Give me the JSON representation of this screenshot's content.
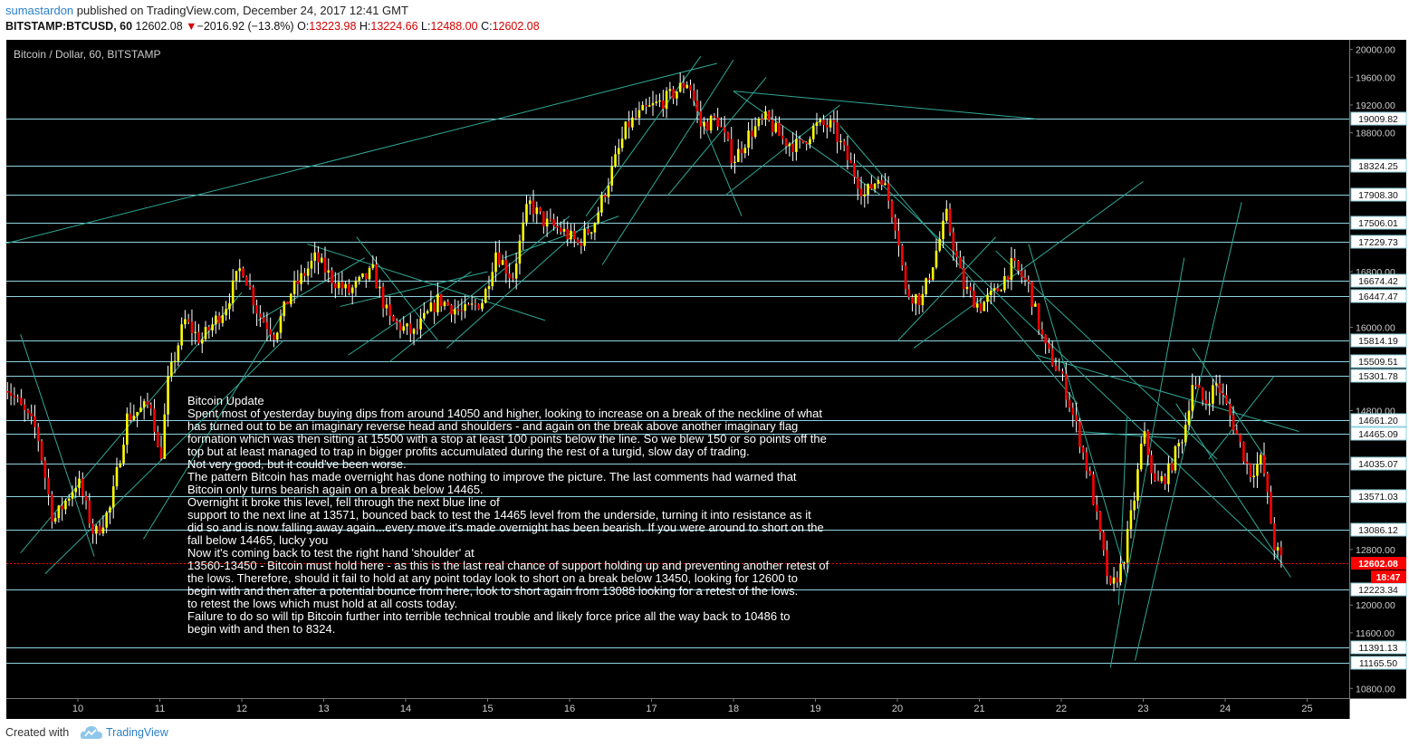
{
  "header": {
    "user": "sumastardon",
    "published_text": "published on TradingView.com, December 24, 2017 12:41 GMT",
    "symbol": "BITSTAMP:BTCUSD, 60",
    "last": "12602.08",
    "change_arrow": "▼",
    "change": "−2016.92 (−13.8%)",
    "o_label": "O:",
    "o_value": "13223.98",
    "h_label": "H:",
    "h_value": "13224.66",
    "l_label": "L:",
    "l_value": "12488.00",
    "c_label": "C:",
    "c_value": "12602.08"
  },
  "footer": {
    "created_with": "Created with",
    "brand": "TradingView"
  },
  "colors": {
    "background": "#000000",
    "up": "#ffff00",
    "down": "#ff0000",
    "wick": "#ffffff",
    "level_line": "#8fd3e0",
    "trend_line": "#2fa896",
    "last_price": "#ff0000",
    "axis_text": "#cccccc"
  },
  "chart_data": {
    "type": "candlestick",
    "title": "Bitcoin / Dollar, 60, BITSTAMP",
    "ylim": [
      10600,
      20100
    ],
    "xlim": [
      9.1,
      25.5
    ],
    "y_ticks": [
      "10800.00",
      "11600.00",
      "12000.00",
      "12800.00",
      "14800.00",
      "16000.00",
      "16800.00",
      "18800.00",
      "19200.00",
      "19600.00",
      "20000.00"
    ],
    "x_ticks": [
      "10",
      "11",
      "12",
      "13",
      "14",
      "15",
      "16",
      "17",
      "18",
      "19",
      "20",
      "21",
      "22",
      "23",
      "24",
      "25"
    ],
    "levels": [
      "19009.82",
      "18324.25",
      "17908.30",
      "17506.01",
      "17229.73",
      "16674.42",
      "16447.47",
      "15814.19",
      "15509.51",
      "15301.78",
      "14661.20",
      "14465.09",
      "14035.07",
      "13571.03",
      "13086.12",
      "12223.34",
      "11391.13",
      "11165.50"
    ],
    "last_price": "12602.08",
    "countdown": "18:47",
    "path": [
      [
        9.1,
        15200
      ],
      [
        9.5,
        14500
      ],
      [
        9.7,
        13200
      ],
      [
        10.0,
        13800
      ],
      [
        10.2,
        13000
      ],
      [
        10.4,
        13400
      ],
      [
        10.6,
        14700
      ],
      [
        10.9,
        14900
      ],
      [
        11.0,
        14000
      ],
      [
        11.1,
        15200
      ],
      [
        11.3,
        16100
      ],
      [
        11.5,
        15800
      ],
      [
        11.8,
        16300
      ],
      [
        12.0,
        16900
      ],
      [
        12.2,
        16200
      ],
      [
        12.4,
        15900
      ],
      [
        12.6,
        16500
      ],
      [
        12.9,
        17000
      ],
      [
        13.1,
        16700
      ],
      [
        13.3,
        16500
      ],
      [
        13.6,
        16800
      ],
      [
        13.8,
        16100
      ],
      [
        14.1,
        15900
      ],
      [
        14.4,
        16400
      ],
      [
        14.7,
        16200
      ],
      [
        14.95,
        16400
      ],
      [
        15.1,
        17100
      ],
      [
        15.3,
        16700
      ],
      [
        15.5,
        17800
      ],
      [
        15.7,
        17500
      ],
      [
        15.9,
        17400
      ],
      [
        16.1,
        17200
      ],
      [
        16.3,
        17500
      ],
      [
        16.5,
        18200
      ],
      [
        16.7,
        18900
      ],
      [
        16.9,
        19100
      ],
      [
        17.2,
        19300
      ],
      [
        17.45,
        19550
      ],
      [
        17.6,
        18900
      ],
      [
        17.8,
        19000
      ],
      [
        18.0,
        18400
      ],
      [
        18.2,
        18800
      ],
      [
        18.4,
        19000
      ],
      [
        18.6,
        18700
      ],
      [
        18.8,
        18600
      ],
      [
        19.0,
        18900
      ],
      [
        19.2,
        18900
      ],
      [
        19.4,
        18400
      ],
      [
        19.6,
        17900
      ],
      [
        19.8,
        18200
      ],
      [
        20.0,
        17400
      ],
      [
        20.1,
        16500
      ],
      [
        20.3,
        16400
      ],
      [
        20.5,
        17200
      ],
      [
        20.6,
        17600
      ],
      [
        20.8,
        16600
      ],
      [
        21.0,
        16300
      ],
      [
        21.2,
        16500
      ],
      [
        21.4,
        16900
      ],
      [
        21.6,
        16600
      ],
      [
        21.8,
        15700
      ],
      [
        22.0,
        15300
      ],
      [
        22.2,
        14500
      ],
      [
        22.35,
        13800
      ],
      [
        22.5,
        12800
      ],
      [
        22.6,
        12200
      ],
      [
        22.75,
        12600
      ],
      [
        22.9,
        13600
      ],
      [
        23.0,
        14500
      ],
      [
        23.15,
        13700
      ],
      [
        23.3,
        13900
      ],
      [
        23.5,
        14500
      ],
      [
        23.6,
        15200
      ],
      [
        23.75,
        14900
      ],
      [
        23.9,
        15200
      ],
      [
        24.0,
        14900
      ],
      [
        24.1,
        14600
      ],
      [
        24.3,
        13900
      ],
      [
        24.45,
        14100
      ],
      [
        24.6,
        12850
      ],
      [
        24.7,
        12602
      ]
    ],
    "trend_lines": [
      [
        [
          9.1,
          17200
        ],
        [
          17.8,
          19800
        ]
      ],
      [
        [
          9.3,
          12750
        ],
        [
          12.0,
          16500
        ]
      ],
      [
        [
          9.6,
          12450
        ],
        [
          12.5,
          15800
        ]
      ],
      [
        [
          9.3,
          15900
        ],
        [
          10.2,
          12700
        ]
      ],
      [
        [
          10.8,
          12950
        ],
        [
          12.5,
          16200
        ]
      ],
      [
        [
          12.2,
          16100
        ],
        [
          13.5,
          17000
        ]
      ],
      [
        [
          12.8,
          17200
        ],
        [
          15.7,
          16100
        ]
      ],
      [
        [
          13.2,
          16300
        ],
        [
          15.0,
          16800
        ]
      ],
      [
        [
          13.3,
          15600
        ],
        [
          14.8,
          16800
        ]
      ],
      [
        [
          13.4,
          17300
        ],
        [
          14.4,
          15800
        ]
      ],
      [
        [
          13.8,
          15500
        ],
        [
          16.0,
          17600
        ]
      ],
      [
        [
          14.5,
          15700
        ],
        [
          16.4,
          17700
        ]
      ],
      [
        [
          15.2,
          17000
        ],
        [
          16.6,
          17600
        ]
      ],
      [
        [
          16.4,
          16900
        ],
        [
          18.0,
          19850
        ]
      ],
      [
        [
          16.2,
          17600
        ],
        [
          17.6,
          19900
        ]
      ],
      [
        [
          17.2,
          17900
        ],
        [
          18.4,
          19600
        ]
      ],
      [
        [
          18.0,
          19400
        ],
        [
          19.8,
          17900
        ]
      ],
      [
        [
          17.5,
          19300
        ],
        [
          18.1,
          17600
        ]
      ],
      [
        [
          17.9,
          17900
        ],
        [
          19.3,
          19200
        ]
      ],
      [
        [
          18.0,
          19400
        ],
        [
          21.7,
          19000
        ]
      ],
      [
        [
          19.3,
          18900
        ],
        [
          22.2,
          14900
        ]
      ],
      [
        [
          19.5,
          18400
        ],
        [
          24.7,
          12600
        ]
      ],
      [
        [
          20.2,
          15700
        ],
        [
          23.0,
          18100
        ]
      ],
      [
        [
          20.0,
          15800
        ],
        [
          21.2,
          17300
        ]
      ],
      [
        [
          21.2,
          17100
        ],
        [
          23.9,
          14100
        ]
      ],
      [
        [
          21.7,
          15600
        ],
        [
          24.9,
          14500
        ]
      ],
      [
        [
          21.6,
          17200
        ],
        [
          22.8,
          12400
        ]
      ],
      [
        [
          22.6,
          11100
        ],
        [
          23.5,
          17000
        ]
      ],
      [
        [
          22.9,
          11200
        ],
        [
          24.2,
          17800
        ]
      ],
      [
        [
          23.4,
          14900
        ],
        [
          24.8,
          12400
        ]
      ],
      [
        [
          22.7,
          12000
        ],
        [
          22.8,
          14700
        ]
      ],
      [
        [
          22.2,
          14500
        ],
        [
          23.4,
          14400
        ]
      ],
      [
        [
          23.8,
          14100
        ],
        [
          24.6,
          15300
        ]
      ],
      [
        [
          23.6,
          15700
        ],
        [
          24.5,
          14100
        ]
      ]
    ]
  },
  "annotation": {
    "lines": [
      "Bitcoin Update",
      "Spent most of yesterday buying dips from around 14050 and higher, looking to increase on a break of the neckline of what",
      "has turned out to be an imaginary reverse head and shoulders - and again on the break above another imaginary flag",
      "formation which was then sitting at 15500 with a stop at least 100 points below the line. So we blew 150 or so points off the",
      "top but at least managed to trap in bigger profits accumulated during the rest of a turgid, slow day of trading.",
      "Not very good, but it could've been worse.",
      "The pattern Bitcoin has made overnight has done nothing to improve the picture. The last comments had warned that",
      "Bitcoin only turns bearish again on a break below 14465.",
      "Overnight it broke this level, fell through the next blue line of",
      "support to the next line at 13571, bounced back to test the 14465 level from the underside, turning it into resistance as it",
      "did so and is now falling away again...every move it's made overnight has been bearish. If you were around to short on the",
      "fall below 14465, lucky you",
      "Now it's coming back to test the right hand 'shoulder' at",
      "13560-13450 - Bitcoin must hold here - as this is the last real chance of support holding up and preventing another retest of",
      "the lows. Therefore, should it fail to hold at any point today look to short on a break below 13450, looking for 12600 to",
      "begin with and then after a potential bounce  from here, look to short again from 13088  looking for a retest of the lows.",
      "to retest the lows which must hold at all costs today.",
      "Failure to do so will tip Bitcoin further into terrible technical trouble and likely force price all the way back to 10486 to",
      "begin with and then to 8324."
    ]
  }
}
